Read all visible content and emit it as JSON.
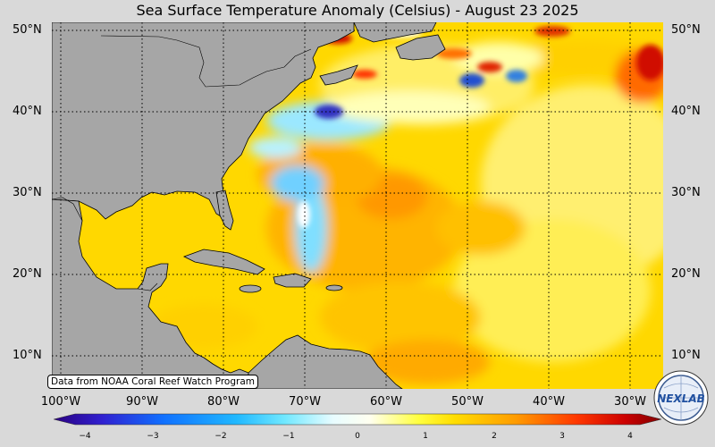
{
  "title": "Sea Surface Temperature Anomaly (Celsius) - August 23 2025",
  "lat_labels": [
    "50°N",
    "40°N",
    "30°N",
    "20°N",
    "10°N"
  ],
  "lon_labels": [
    "100°W",
    "90°W",
    "80°W",
    "70°W",
    "60°W",
    "50°W",
    "40°W",
    "30°W"
  ],
  "credit": "Data from NOAA Coral Reef Watch Program",
  "colorbar": {
    "ticks": [
      "−4",
      "−3",
      "−2",
      "−1",
      "0",
      "1",
      "2",
      "3",
      "4"
    ],
    "range": [
      -4,
      4
    ]
  },
  "logo": {
    "text": "NEXLAB"
  },
  "colors": {
    "land": "#a6a6a6",
    "ocean_base": "#ffd400",
    "warm": "#ff9000",
    "cold": "#55ccff"
  }
}
